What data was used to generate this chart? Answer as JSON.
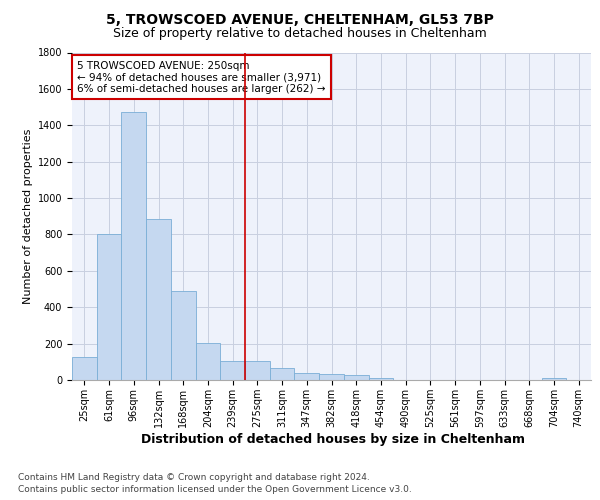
{
  "title1": "5, TROWSCOED AVENUE, CHELTENHAM, GL53 7BP",
  "title2": "Size of property relative to detached houses in Cheltenham",
  "xlabel": "Distribution of detached houses by size in Cheltenham",
  "ylabel": "Number of detached properties",
  "footer1": "Contains HM Land Registry data © Crown copyright and database right 2024.",
  "footer2": "Contains public sector information licensed under the Open Government Licence v3.0.",
  "bar_labels": [
    "25sqm",
    "61sqm",
    "96sqm",
    "132sqm",
    "168sqm",
    "204sqm",
    "239sqm",
    "275sqm",
    "311sqm",
    "347sqm",
    "382sqm",
    "418sqm",
    "454sqm",
    "490sqm",
    "525sqm",
    "561sqm",
    "597sqm",
    "633sqm",
    "668sqm",
    "704sqm",
    "740sqm"
  ],
  "bar_values": [
    125,
    800,
    1475,
    885,
    490,
    205,
    105,
    105,
    65,
    40,
    35,
    25,
    10,
    0,
    0,
    0,
    0,
    0,
    0,
    10,
    0
  ],
  "bar_color": "#c5d8f0",
  "bar_edge_color": "#7aaed6",
  "vline_color": "#cc0000",
  "annotation_line1": "5 TROWSCOED AVENUE: 250sqm",
  "annotation_line2": "← 94% of detached houses are smaller (3,971)",
  "annotation_line3": "6% of semi-detached houses are larger (262) →",
  "annotation_box_color": "#cc0000",
  "ylim": [
    0,
    1800
  ],
  "yticks": [
    0,
    200,
    400,
    600,
    800,
    1000,
    1200,
    1400,
    1600,
    1800
  ],
  "background_color": "#eef2fb",
  "grid_color": "#c8cfe0",
  "title1_fontsize": 10,
  "title2_fontsize": 9,
  "xlabel_fontsize": 9,
  "ylabel_fontsize": 8,
  "tick_fontsize": 7,
  "footer_fontsize": 6.5,
  "annotation_fontsize": 7.5
}
